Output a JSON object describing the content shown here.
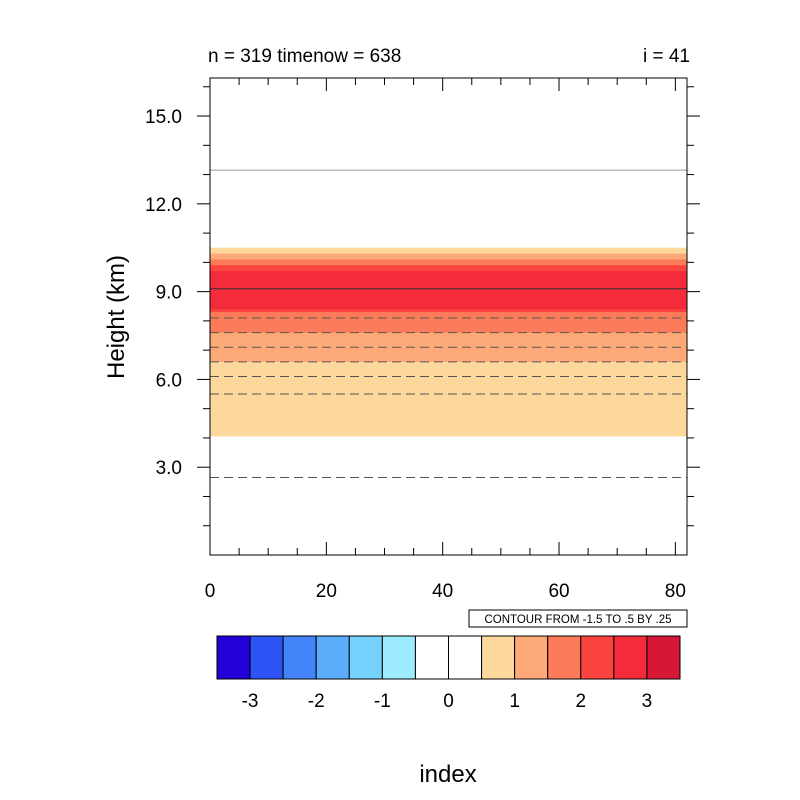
{
  "chart_data": {
    "type": "heatmap",
    "title_left": "n = 319 timenow = 638",
    "title_right": "i = 41",
    "xlabel": "",
    "ylabel": "Height (km)",
    "xlim": [
      0,
      82
    ],
    "ylim": [
      0,
      16.3
    ],
    "x_ticks": [
      0,
      20,
      40,
      60,
      80
    ],
    "x_tick_labels": [
      "0",
      "20",
      "40",
      "60",
      "80"
    ],
    "y_ticks": [
      3,
      6,
      9,
      12,
      15
    ],
    "y_tick_labels": [
      "3.0",
      "6.0",
      "9.0",
      "12.0",
      "15.0"
    ],
    "contour_info": "CONTOUR FROM -1.5 TO .5 BY .25",
    "filled_bands": [
      {
        "y0": 4.05,
        "y1": 10.5,
        "color": "#fdd89d"
      },
      {
        "y0": 6.6,
        "y1": 10.3,
        "color": "#fdaa78"
      },
      {
        "y0": 7.6,
        "y1": 10.1,
        "color": "#fc7b58"
      },
      {
        "y0": 8.3,
        "y1": 9.9,
        "color": "#fb4340"
      },
      {
        "y0": 8.4,
        "y1": 9.7,
        "color": "#f32b3a"
      }
    ],
    "contour_lines": [
      {
        "y": 13.15,
        "style": "solid",
        "color": "#999999"
      },
      {
        "y": 9.1,
        "style": "solid",
        "color": "#333333"
      },
      {
        "y": 8.1,
        "style": "dashed",
        "color": "#555555"
      },
      {
        "y": 7.6,
        "style": "dashed",
        "color": "#555555"
      },
      {
        "y": 7.1,
        "style": "dashed",
        "color": "#555555"
      },
      {
        "y": 6.6,
        "style": "dashed",
        "color": "#555555"
      },
      {
        "y": 6.1,
        "style": "dashed",
        "color": "#555555"
      },
      {
        "y": 5.5,
        "style": "dashed",
        "color": "#555555"
      },
      {
        "y": 2.65,
        "style": "dashed",
        "color": "#555555"
      }
    ],
    "colorbar": {
      "title": "index",
      "colors": [
        "#2200d6",
        "#2d52f5",
        "#4385f8",
        "#5aaefc",
        "#74d2fd",
        "#9cebfe",
        "#ffffff",
        "#ffffff",
        "#fdd89d",
        "#fdaa78",
        "#fc7b58",
        "#fb4340",
        "#f32b3a",
        "#d61735"
      ],
      "labels": [
        "-3",
        "-2",
        "-1",
        "0",
        "1",
        "2",
        "3"
      ]
    }
  }
}
